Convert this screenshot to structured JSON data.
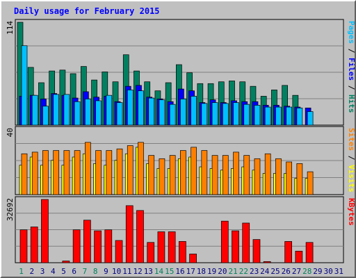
{
  "chart_data": {
    "type": "bar",
    "title": "Daily usage for February 2015",
    "categories": [
      "1",
      "2",
      "3",
      "4",
      "5",
      "6",
      "7",
      "8",
      "9",
      "10",
      "11",
      "12",
      "13",
      "14",
      "15",
      "16",
      "17",
      "18",
      "19",
      "20",
      "21",
      "22",
      "23",
      "24",
      "25",
      "26",
      "27",
      "28",
      "29",
      "30",
      "31"
    ],
    "weekend_days": [
      "1",
      "7",
      "8",
      "14",
      "15",
      "21",
      "22",
      "28"
    ],
    "panels": [
      {
        "name": "pages-files-hits",
        "ymax_label": "114",
        "ylim": [
          0,
          114
        ],
        "ylabel_parts": [
          "Pages",
          " / ",
          "Files",
          " / ",
          "Hits"
        ],
        "ylabel_colors": [
          "#00c0ff",
          "#000000",
          "#0000ff",
          "#000000",
          "#008060"
        ],
        "series": [
          {
            "name": "Hits",
            "color": "#008060",
            "values": [
              114,
              64,
              47,
              60,
              61,
              57,
              65,
              50,
              59,
              48,
              78,
              60,
              48,
              38,
              47,
              67,
              58,
              46,
              46,
              48,
              49,
              48,
              43,
              32,
              39,
              44,
              33,
              0,
              0,
              0,
              0
            ]
          },
          {
            "name": "Files",
            "color": "#0000ff",
            "values": [
              32,
              33,
              29,
              35,
              33,
              30,
              37,
              31,
              32,
              26,
              43,
              44,
              31,
              29,
              26,
              40,
              38,
              25,
              28,
              25,
              27,
              26,
              26,
              22,
              22,
              21,
              20,
              19,
              0,
              0,
              0
            ]
          },
          {
            "name": "Pages",
            "color": "#00c0ff",
            "values": [
              88,
              33,
              21,
              34,
              34,
              26,
              29,
              27,
              33,
              25,
              39,
              38,
              30,
              28,
              23,
              29,
              32,
              24,
              25,
              24,
              25,
              23,
              22,
              20,
              20,
              20,
              19,
              15,
              0,
              0,
              0
            ]
          }
        ]
      },
      {
        "name": "sites-visits",
        "ymax_label": "40",
        "ylim": [
          0,
          40
        ],
        "ylabel_parts": [
          "Sites",
          " / ",
          "Visits"
        ],
        "ylabel_colors": [
          "#ff8000",
          "#000000",
          "#ffff00"
        ],
        "series": [
          {
            "name": "Visits",
            "color": "#ffff00",
            "values": [
              18,
              23,
              18,
              21,
              18,
              23,
              25,
              19,
              18,
              21,
              25,
              29,
              19,
              16,
              16,
              22,
              23,
              17,
              16,
              15,
              16,
              17,
              15,
              13,
              13,
              13,
              10,
              10,
              0,
              0,
              0
            ]
          },
          {
            "name": "Sites",
            "color": "#ff8000",
            "values": [
              25,
              26,
              27,
              27,
              27,
              27,
              32,
              27,
              27,
              28,
              30,
              32,
              24,
              22,
              24,
              27,
              29,
              27,
              24,
              24,
              26,
              24,
              22,
              25,
              22,
              20,
              19,
              14,
              0,
              0,
              0
            ]
          }
        ]
      },
      {
        "name": "kbytes",
        "ymax_label": "32692",
        "ylim": [
          0,
          32692
        ],
        "ylabel_parts": [
          "KBytes"
        ],
        "ylabel_colors": [
          "#ff0000"
        ],
        "series": [
          {
            "name": "KBytes",
            "color": "#ff0000",
            "values": [
              17000,
              18500,
              32692,
              0,
              900,
              17000,
              22000,
              16500,
              17000,
              11500,
              29500,
              27000,
              10500,
              16000,
              16000,
              11000,
              4500,
              0,
              0,
              21500,
              16500,
              20500,
              12000,
              600,
              0,
              11000,
              6000,
              10500,
              0,
              0,
              0
            ]
          }
        ]
      }
    ],
    "colors": {
      "background": "#c0c0c0",
      "grid": "#808080",
      "title": "#0000ff",
      "weekday_label": "#000080",
      "weekend_label": "#00805c"
    }
  }
}
